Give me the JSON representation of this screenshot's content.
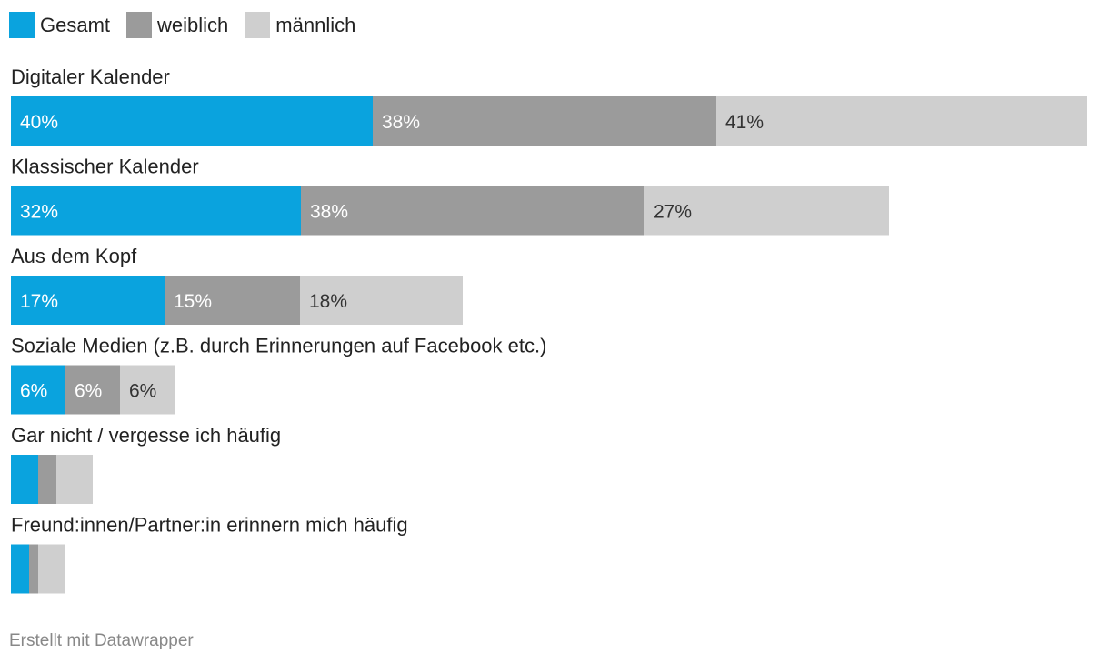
{
  "chart_data": {
    "type": "bar",
    "orientation": "horizontal",
    "stacked": true,
    "legend": [
      {
        "name": "Gesamt",
        "color": "#0aa3de"
      },
      {
        "name": "weiblich",
        "color": "#9b9b9b"
      },
      {
        "name": "männlich",
        "color": "#cfcfcf"
      }
    ],
    "categories": [
      "Digitaler Kalender",
      "Klassischer Kalender",
      "Aus dem Kopf",
      "Soziale Medien (z.B. durch Erinnerungen auf Facebook etc.)",
      "Gar nicht / vergesse ich häufig",
      "Freund:innen/Partner:in erinnern mich häufig"
    ],
    "series": [
      {
        "name": "Gesamt",
        "values": [
          40,
          32,
          17,
          6,
          3,
          2
        ],
        "labels": [
          "40%",
          "32%",
          "17%",
          "6%",
          "",
          ""
        ]
      },
      {
        "name": "weiblich",
        "values": [
          38,
          38,
          15,
          6,
          2,
          1
        ],
        "labels": [
          "38%",
          "38%",
          "15%",
          "6%",
          "",
          ""
        ]
      },
      {
        "name": "männlich",
        "values": [
          41,
          27,
          18,
          6,
          4,
          3
        ],
        "labels": [
          "41%",
          "27%",
          "18%",
          "6%",
          "",
          ""
        ]
      }
    ],
    "label_colors": [
      "#ffffff",
      "#ffffff",
      "#333333"
    ],
    "max_total": 120
  },
  "footer": {
    "credit": "Erstellt mit Datawrapper"
  }
}
